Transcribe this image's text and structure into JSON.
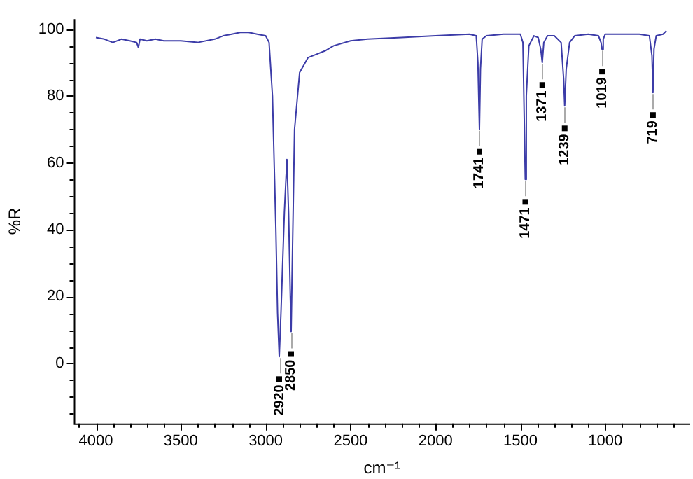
{
  "chart_data": {
    "type": "line",
    "xlabel": "cm⁻¹",
    "ylabel": "%R",
    "xlim": [
      4130,
      500
    ],
    "ylim": [
      -18,
      103
    ],
    "xticks": [
      {
        "value": 4100,
        "label": null
      },
      4000,
      {
        "value": 3900,
        "label": null
      },
      {
        "value": 3800,
        "label": null
      },
      {
        "value": 3700,
        "label": null
      },
      {
        "value": 3600,
        "label": null
      },
      3500,
      {
        "value": 3400,
        "label": null
      },
      {
        "value": 3300,
        "label": null
      },
      {
        "value": 3200,
        "label": null
      },
      {
        "value": 3100,
        "label": null
      },
      3000,
      {
        "value": 2900,
        "label": null
      },
      {
        "value": 2800,
        "label": null
      },
      {
        "value": 2700,
        "label": null
      },
      {
        "value": 2600,
        "label": null
      },
      2500,
      {
        "value": 2400,
        "label": null
      },
      {
        "value": 2300,
        "label": null
      },
      {
        "value": 2200,
        "label": null
      },
      {
        "value": 2100,
        "label": null
      },
      2000,
      {
        "value": 1900,
        "label": null
      },
      {
        "value": 1800,
        "label": null
      },
      {
        "value": 1700,
        "label": null
      },
      {
        "value": 1600,
        "label": null
      },
      1500,
      {
        "value": 1400,
        "label": null
      },
      {
        "value": 1300,
        "label": null
      },
      {
        "value": 1200,
        "label": null
      },
      {
        "value": 1100,
        "label": null
      },
      1000,
      {
        "value": 900,
        "label": null
      },
      {
        "value": 800,
        "label": null
      },
      {
        "value": 700,
        "label": null
      },
      {
        "value": 600,
        "label": null
      }
    ],
    "yticks": [
      {
        "value": -15,
        "label": null
      },
      {
        "value": -10,
        "label": null
      },
      {
        "value": -5,
        "label": null
      },
      0,
      {
        "value": 5,
        "label": null
      },
      {
        "value": 10,
        "label": null
      },
      {
        "value": 15,
        "label": null
      },
      20,
      {
        "value": 25,
        "label": null
      },
      {
        "value": 30,
        "label": null
      },
      {
        "value": 35,
        "label": null
      },
      40,
      {
        "value": 45,
        "label": null
      },
      {
        "value": 50,
        "label": null
      },
      {
        "value": 55,
        "label": null
      },
      60,
      {
        "value": 65,
        "label": null
      },
      {
        "value": 70,
        "label": null
      },
      {
        "value": 75,
        "label": null
      },
      80,
      {
        "value": 85,
        "label": null
      },
      {
        "value": 90,
        "label": null
      },
      {
        "value": 95,
        "label": null
      },
      100
    ],
    "marker": "none",
    "series": [
      {
        "color": "#3c3ca8",
        "x": [
          4000,
          3950,
          3900,
          3850,
          3800,
          3760,
          3750,
          3740,
          3700,
          3650,
          3600,
          3500,
          3400,
          3300,
          3250,
          3200,
          3150,
          3100,
          3050,
          3000,
          2980,
          2960,
          2940,
          2930,
          2920,
          2910,
          2890,
          2875,
          2865,
          2855,
          2850,
          2845,
          2830,
          2800,
          2750,
          2700,
          2650,
          2600,
          2500,
          2400,
          2200,
          2000,
          1800,
          1760,
          1750,
          1741,
          1735,
          1725,
          1700,
          1600,
          1500,
          1485,
          1471,
          1465,
          1450,
          1420,
          1395,
          1380,
          1371,
          1362,
          1340,
          1300,
          1260,
          1245,
          1239,
          1230,
          1210,
          1180,
          1100,
          1040,
          1025,
          1019,
          1012,
          1000,
          900,
          800,
          740,
          725,
          719,
          713,
          700,
          660,
          640
        ],
        "values": [
          97.5,
          97,
          96,
          97,
          96.5,
          96,
          94.5,
          97,
          96.5,
          97,
          96.5,
          96.5,
          96,
          97,
          98,
          98.5,
          99,
          99,
          98.5,
          98,
          96,
          80,
          40,
          15,
          2,
          15,
          45,
          61,
          45,
          20,
          9.5,
          25,
          70,
          87,
          91.5,
          92.5,
          93.5,
          95,
          96.5,
          97,
          97.5,
          98,
          98.5,
          98,
          90,
          70,
          88,
          97,
          98,
          98.5,
          98.5,
          96,
          55,
          80,
          95,
          98,
          97.5,
          94,
          90,
          96,
          98,
          98,
          96,
          85,
          77,
          88,
          96,
          98,
          98.5,
          98,
          96,
          94,
          97,
          98.5,
          98.5,
          98.5,
          98,
          92,
          81,
          94,
          98,
          98.5,
          99.5
        ]
      }
    ],
    "annotations": [
      {
        "text": "2920",
        "x": 2920,
        "y": 2
      },
      {
        "text": "2850",
        "x": 2850,
        "y": 9.5
      },
      {
        "text": "1741",
        "x": 1741,
        "y": 70
      },
      {
        "text": "1471",
        "x": 1471,
        "y": 55
      },
      {
        "text": "1371",
        "x": 1371,
        "y": 90
      },
      {
        "text": "1239",
        "x": 1239,
        "y": 77
      },
      {
        "text": "1019",
        "x": 1019,
        "y": 94
      },
      {
        "text": "719",
        "x": 719,
        "y": 81
      }
    ]
  }
}
